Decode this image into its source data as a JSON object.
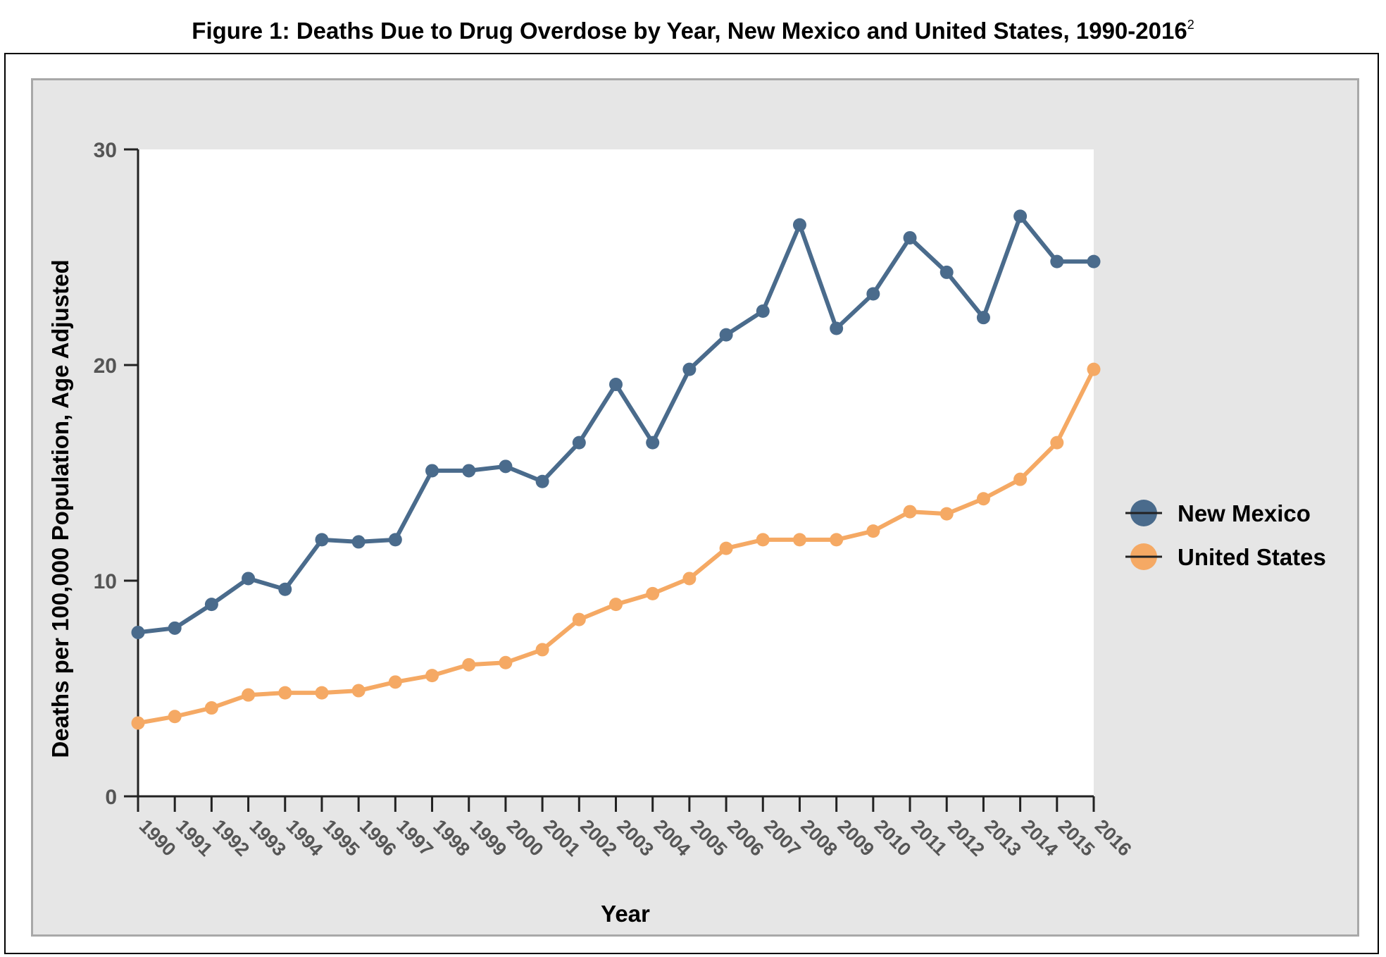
{
  "figure": {
    "title": "Figure 1: Deaths Due to Drug Overdose by Year, New Mexico and United States, 1990-2016",
    "title_superscript": "2"
  },
  "chart_data": {
    "type": "line",
    "title": "Figure 1: Deaths Due to Drug Overdose by Year, New Mexico and United States, 1990-2016",
    "xlabel": "Year",
    "ylabel": "Deaths per 100,000 Population, Age Adjusted",
    "ylim": [
      0,
      30
    ],
    "yticks": [
      0,
      10,
      20,
      30
    ],
    "grid": false,
    "legend_position": "right",
    "categories": [
      "1990",
      "1991",
      "1992",
      "1993",
      "1994",
      "1995",
      "1996",
      "1997",
      "1998",
      "1999",
      "2000",
      "2001",
      "2002",
      "2003",
      "2004",
      "2005",
      "2006",
      "2007",
      "2008",
      "2009",
      "2010",
      "2011",
      "2012",
      "2013",
      "2014",
      "2015",
      "2016"
    ],
    "series": [
      {
        "name": "New Mexico",
        "color": "#4a6b8c",
        "values": [
          7.6,
          7.8,
          8.9,
          10.1,
          9.6,
          11.9,
          11.8,
          11.9,
          15.1,
          15.1,
          15.3,
          14.6,
          16.4,
          19.1,
          16.4,
          19.8,
          21.4,
          22.5,
          26.5,
          21.7,
          23.3,
          25.9,
          24.3,
          22.2,
          26.9,
          24.8,
          24.8
        ]
      },
      {
        "name": "United States",
        "color": "#f5a964",
        "values": [
          3.4,
          3.7,
          4.1,
          4.7,
          4.8,
          4.8,
          4.9,
          5.3,
          5.6,
          6.1,
          6.2,
          6.8,
          8.2,
          8.9,
          9.4,
          10.1,
          11.5,
          11.9,
          11.9,
          11.9,
          12.3,
          13.2,
          13.1,
          13.8,
          14.7,
          16.4,
          19.8
        ]
      }
    ]
  }
}
